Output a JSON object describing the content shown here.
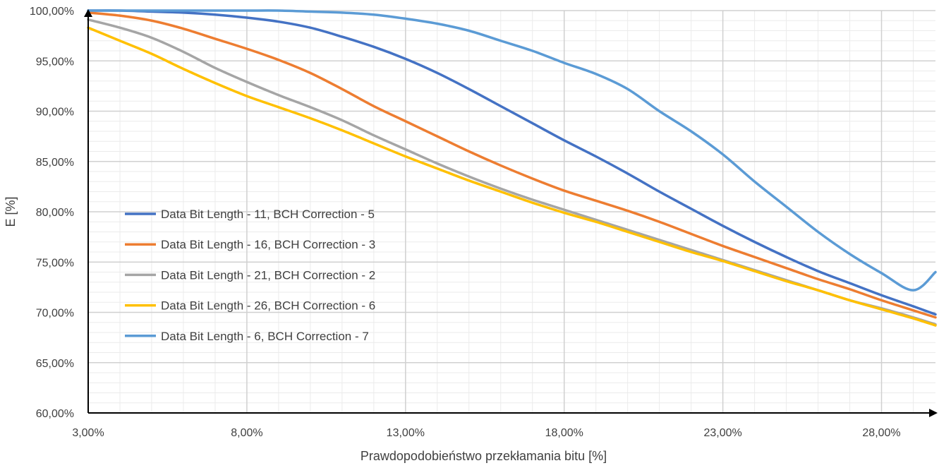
{
  "chart_data": {
    "type": "line",
    "title": "",
    "xlabel": "Prawdopodobieństwo przekłamania bitu [%]",
    "ylabel": "E [%]",
    "xlim": [
      3,
      29.7
    ],
    "ylim": [
      60,
      100
    ],
    "x_ticks": [
      3,
      8,
      13,
      18,
      23,
      28
    ],
    "x_tick_labels": [
      "3,00%",
      "8,00%",
      "13,00%",
      "18,00%",
      "23,00%",
      "28,00%"
    ],
    "y_ticks": [
      60,
      65,
      70,
      75,
      80,
      85,
      90,
      95,
      100
    ],
    "y_tick_labels": [
      "60,00%",
      "65,00%",
      "70,00%",
      "75,00%",
      "80,00%",
      "85,00%",
      "90,00%",
      "95,00%",
      "100,00%"
    ],
    "grid": true,
    "legend_position": "center-left",
    "x": [
      3,
      4,
      5,
      6,
      7,
      8,
      9,
      10,
      11,
      12,
      13,
      14,
      15,
      16,
      17,
      18,
      19,
      20,
      21,
      22,
      23,
      24,
      25,
      26,
      27,
      28,
      29,
      29.7
    ],
    "series": [
      {
        "name": "Data Bit Length - 11, BCH Correction - 5",
        "color": "#4472C4",
        "values": [
          100,
          100,
          99.9,
          99.8,
          99.6,
          99.3,
          98.9,
          98.3,
          97.4,
          96.4,
          95.2,
          93.8,
          92.2,
          90.5,
          88.8,
          87.1,
          85.5,
          83.8,
          82.0,
          80.3,
          78.6,
          77.0,
          75.5,
          74.1,
          72.9,
          71.7,
          70.6,
          69.8
        ]
      },
      {
        "name": "Data Bit Length - 16, BCH Correction - 3",
        "color": "#ED7D31",
        "values": [
          99.8,
          99.5,
          99.0,
          98.2,
          97.2,
          96.2,
          95.1,
          93.8,
          92.2,
          90.5,
          89.0,
          87.5,
          86.0,
          84.6,
          83.3,
          82.1,
          81.1,
          80.1,
          79.0,
          77.8,
          76.6,
          75.5,
          74.4,
          73.3,
          72.3,
          71.2,
          70.2,
          69.5
        ]
      },
      {
        "name": "Data Bit Length - 21, BCH Correction - 2",
        "color": "#A5A5A5",
        "values": [
          99.1,
          98.3,
          97.3,
          95.9,
          94.3,
          92.9,
          91.6,
          90.4,
          89.1,
          87.6,
          86.2,
          84.8,
          83.5,
          82.3,
          81.2,
          80.2,
          79.2,
          78.2,
          77.2,
          76.2,
          75.2,
          74.2,
          73.2,
          72.2,
          71.2,
          70.4,
          69.5,
          68.8
        ]
      },
      {
        "name": "Data Bit Length - 26, BCH Correction - 6",
        "color": "#FFC000",
        "values": [
          98.3,
          97.0,
          95.7,
          94.2,
          92.8,
          91.5,
          90.4,
          89.3,
          88.1,
          86.8,
          85.5,
          84.3,
          83.1,
          82.0,
          80.9,
          79.9,
          79.0,
          78.0,
          77.0,
          76.0,
          75.1,
          74.1,
          73.1,
          72.2,
          71.2,
          70.3,
          69.4,
          68.7
        ]
      },
      {
        "name": "Data Bit Length - 6, BCH Correction - 7",
        "color": "#5B9BD5",
        "values": [
          100,
          100,
          100,
          100,
          100,
          100,
          100,
          99.9,
          99.8,
          99.6,
          99.2,
          98.7,
          98.0,
          97.0,
          96.0,
          94.8,
          93.7,
          92.2,
          90.0,
          88.0,
          85.7,
          83.0,
          80.5,
          78.0,
          75.8,
          73.9,
          72.2,
          74.0
        ]
      }
    ]
  }
}
